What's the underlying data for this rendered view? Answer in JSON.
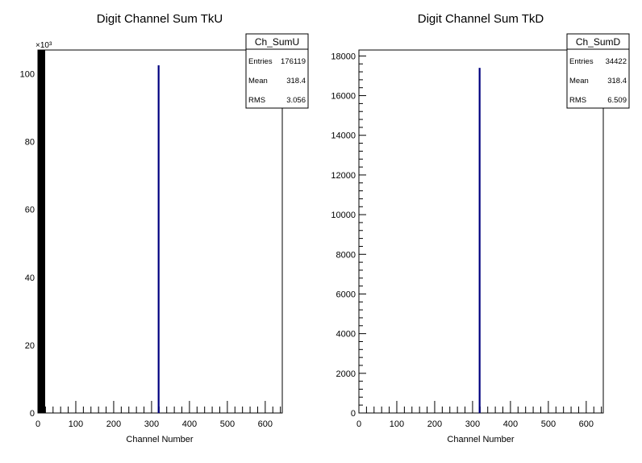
{
  "chart_data": [
    {
      "type": "bar",
      "title": "Digit Channel Sum TkU",
      "xlabel": "Channel Number",
      "ylabel": "",
      "xlim": [
        0,
        645
      ],
      "ylim": [
        0,
        107000
      ],
      "y_multiplier_label": "×10³",
      "xticks": [
        0,
        100,
        200,
        300,
        400,
        500,
        600
      ],
      "yticks": [
        0,
        20,
        40,
        60,
        80,
        100
      ],
      "ytick_scale": 1000,
      "bins": [
        {
          "x": 318.4,
          "value": 102500
        }
      ],
      "color": "#000080",
      "stats": {
        "name": "Ch_SumU",
        "rows": [
          {
            "label": "Entries",
            "value": "176119"
          },
          {
            "label": "Mean",
            "value": "318.4"
          },
          {
            "label": "RMS",
            "value": "3.056"
          }
        ]
      }
    },
    {
      "type": "bar",
      "title": "Digit Channel Sum TkD",
      "xlabel": "Channel Number",
      "ylabel": "",
      "xlim": [
        0,
        645
      ],
      "ylim": [
        0,
        18300
      ],
      "y_multiplier_label": "",
      "xticks": [
        0,
        100,
        200,
        300,
        400,
        500,
        600
      ],
      "yticks": [
        0,
        2000,
        4000,
        6000,
        8000,
        10000,
        12000,
        14000,
        16000,
        18000
      ],
      "ytick_scale": 1,
      "bins": [
        {
          "x": 318.4,
          "value": 17400
        }
      ],
      "color": "#000080",
      "stats": {
        "name": "Ch_SumD",
        "rows": [
          {
            "label": "Entries",
            "value": "34422"
          },
          {
            "label": "Mean",
            "value": "318.4"
          },
          {
            "label": "RMS",
            "value": "6.509"
          }
        ]
      }
    }
  ]
}
